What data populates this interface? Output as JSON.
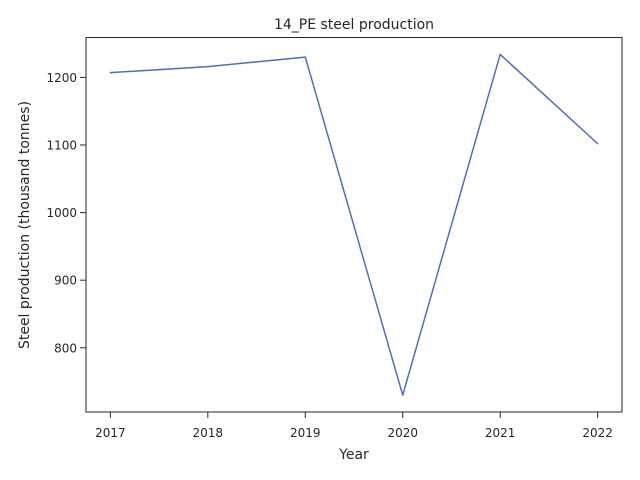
{
  "chart_data": {
    "type": "line",
    "title": "14_PE steel production",
    "xlabel": "Year",
    "ylabel": "Steel production (thousand tonnes)",
    "x": [
      2017,
      2018,
      2019,
      2020,
      2021,
      2022
    ],
    "series": [
      {
        "values": [
          1207,
          1216,
          1230,
          730,
          1234,
          1102
        ]
      }
    ],
    "xlim": [
      2016.75,
      2022.25
    ],
    "ylim": [
      705,
      1259
    ],
    "yticks": [
      800,
      900,
      1000,
      1100,
      1200
    ],
    "xticks": [
      2017,
      2018,
      2019,
      2020,
      2021,
      2022
    ],
    "grid": false,
    "line_color": "#4c72b0"
  }
}
